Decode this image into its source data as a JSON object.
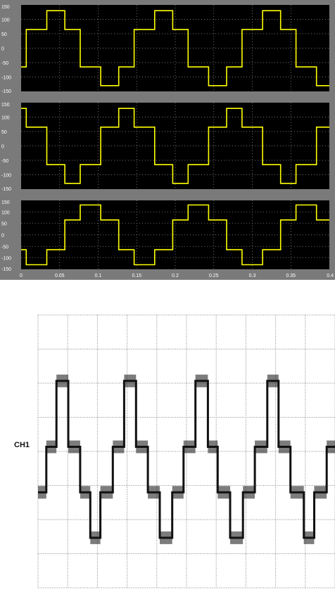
{
  "colors": {
    "scope_frame": "#7a7a7a",
    "scope_plot_bg": "#000000",
    "scope_trace": "#ffff00",
    "scope_tick_text": "#ffffff",
    "osc_grid": "#8a8a8a",
    "osc_trace": "#111111"
  },
  "chart_data": [
    {
      "type": "line",
      "panel": "scope-1",
      "grid": true,
      "xlim": [
        0,
        0.4
      ],
      "ylim": [
        -150,
        150
      ],
      "yticks": [
        "150",
        "100",
        "50",
        "0",
        "-50",
        "-100",
        "-150"
      ],
      "series": [
        {
          "x": [
            0,
            0.0067,
            0.0067,
            0.0333,
            0.0333,
            0.0567,
            0.0567,
            0.0767,
            0.0767,
            0.1033,
            0.1033,
            0.1267,
            0.1267,
            0.1467,
            0.1467,
            0.1733,
            0.1733,
            0.1967,
            0.1967,
            0.2167,
            0.2167,
            0.2433,
            0.2433,
            0.2667,
            0.2667,
            0.2867,
            0.2867,
            0.3133,
            0.3133,
            0.3367,
            0.3367,
            0.3567,
            0.3567,
            0.3833,
            0.3833,
            0.4
          ],
          "y": [
            -65,
            -65,
            65,
            65,
            130,
            130,
            65,
            65,
            -65,
            -65,
            -130,
            -130,
            -65,
            -65,
            65,
            65,
            130,
            130,
            65,
            65,
            -65,
            -65,
            -130,
            -130,
            -65,
            -65,
            65,
            65,
            130,
            130,
            65,
            65,
            -65,
            -65,
            -130,
            -130
          ]
        }
      ]
    },
    {
      "type": "line",
      "panel": "scope-2",
      "grid": true,
      "xlim": [
        0,
        0.4
      ],
      "ylim": [
        -150,
        150
      ],
      "yticks": [
        "150",
        "100",
        "50",
        "0",
        "-50",
        "-100",
        "-150"
      ],
      "series": [
        {
          "x": [
            0,
            0.0067,
            0.0067,
            0.0333,
            0.0333,
            0.0567,
            0.0567,
            0.0767,
            0.0767,
            0.1033,
            0.1033,
            0.1267,
            0.1267,
            0.1467,
            0.1467,
            0.1733,
            0.1733,
            0.1967,
            0.1967,
            0.2167,
            0.2167,
            0.2433,
            0.2433,
            0.2667,
            0.2667,
            0.2867,
            0.2867,
            0.3133,
            0.3133,
            0.3367,
            0.3367,
            0.3567,
            0.3567,
            0.3833,
            0.3833,
            0.4
          ],
          "y": [
            130,
            130,
            65,
            65,
            -65,
            -65,
            -130,
            -130,
            -65,
            -65,
            65,
            65,
            130,
            130,
            65,
            65,
            -65,
            -65,
            -130,
            -130,
            -65,
            -65,
            65,
            65,
            130,
            130,
            65,
            65,
            -65,
            -65,
            -130,
            -130,
            -65,
            -65,
            65,
            65
          ]
        }
      ]
    },
    {
      "type": "line",
      "panel": "scope-3",
      "grid": true,
      "xlim": [
        0,
        0.4
      ],
      "ylim": [
        -150,
        150
      ],
      "yticks": [
        "150",
        "100",
        "50",
        "0",
        "-50",
        "-100",
        "-150"
      ],
      "xticks": [
        "0",
        "0.05",
        "0.1",
        "0.15",
        "0.2",
        "0.25",
        "0.3",
        "0.35",
        "0.4"
      ],
      "series": [
        {
          "x": [
            0,
            0.0067,
            0.0067,
            0.0333,
            0.0333,
            0.0567,
            0.0567,
            0.0767,
            0.0767,
            0.1033,
            0.1033,
            0.1267,
            0.1267,
            0.1467,
            0.1467,
            0.1733,
            0.1733,
            0.1967,
            0.1967,
            0.2167,
            0.2167,
            0.2433,
            0.2433,
            0.2667,
            0.2667,
            0.2867,
            0.2867,
            0.3133,
            0.3133,
            0.3367,
            0.3367,
            0.3567,
            0.3567,
            0.3833,
            0.3833,
            0.4
          ],
          "y": [
            -65,
            -65,
            -130,
            -130,
            -65,
            -65,
            65,
            65,
            130,
            130,
            65,
            65,
            -65,
            -65,
            -130,
            -130,
            -65,
            -65,
            65,
            65,
            130,
            130,
            65,
            65,
            -65,
            -65,
            -130,
            -130,
            -65,
            -65,
            65,
            65,
            130,
            130,
            65,
            65
          ]
        }
      ]
    },
    {
      "type": "line",
      "panel": "oscilloscope",
      "grid": true,
      "channel_label": "CH1",
      "xlim": [
        0,
        10
      ],
      "ylim": [
        -3,
        3
      ],
      "series": [
        {
          "x": [
            0,
            0.28,
            0.28,
            0.62,
            0.62,
            1.02,
            1.02,
            1.42,
            1.42,
            1.76,
            1.76,
            2.1,
            2.1,
            2.52,
            2.52,
            2.9,
            2.9,
            3.3,
            3.3,
            3.7,
            3.7,
            4.1,
            4.1,
            4.52,
            4.52,
            4.9,
            4.9,
            5.3,
            5.3,
            5.72,
            5.72,
            6.05,
            6.05,
            6.47,
            6.47,
            6.9,
            6.9,
            7.3,
            7.3,
            7.72,
            7.72,
            8.1,
            8.1,
            8.5,
            8.5,
            8.95,
            8.95,
            9.3,
            9.3,
            9.72,
            9.72,
            10
          ],
          "y": [
            -0.9,
            -0.9,
            0.1,
            0.1,
            1.55,
            1.55,
            0.1,
            0.1,
            -0.9,
            -0.9,
            -1.9,
            -1.9,
            -0.9,
            -0.9,
            0.1,
            0.1,
            1.55,
            1.55,
            0.1,
            0.1,
            -0.9,
            -0.9,
            -1.9,
            -1.9,
            -0.9,
            -0.9,
            0.1,
            0.1,
            1.55,
            1.55,
            0.1,
            0.1,
            -0.9,
            -0.9,
            -1.9,
            -1.9,
            -0.9,
            -0.9,
            0.1,
            0.1,
            1.55,
            1.55,
            0.1,
            0.1,
            -0.9,
            -0.9,
            -1.9,
            -1.9,
            -0.9,
            -0.9,
            0.1,
            0.1
          ]
        }
      ]
    }
  ]
}
